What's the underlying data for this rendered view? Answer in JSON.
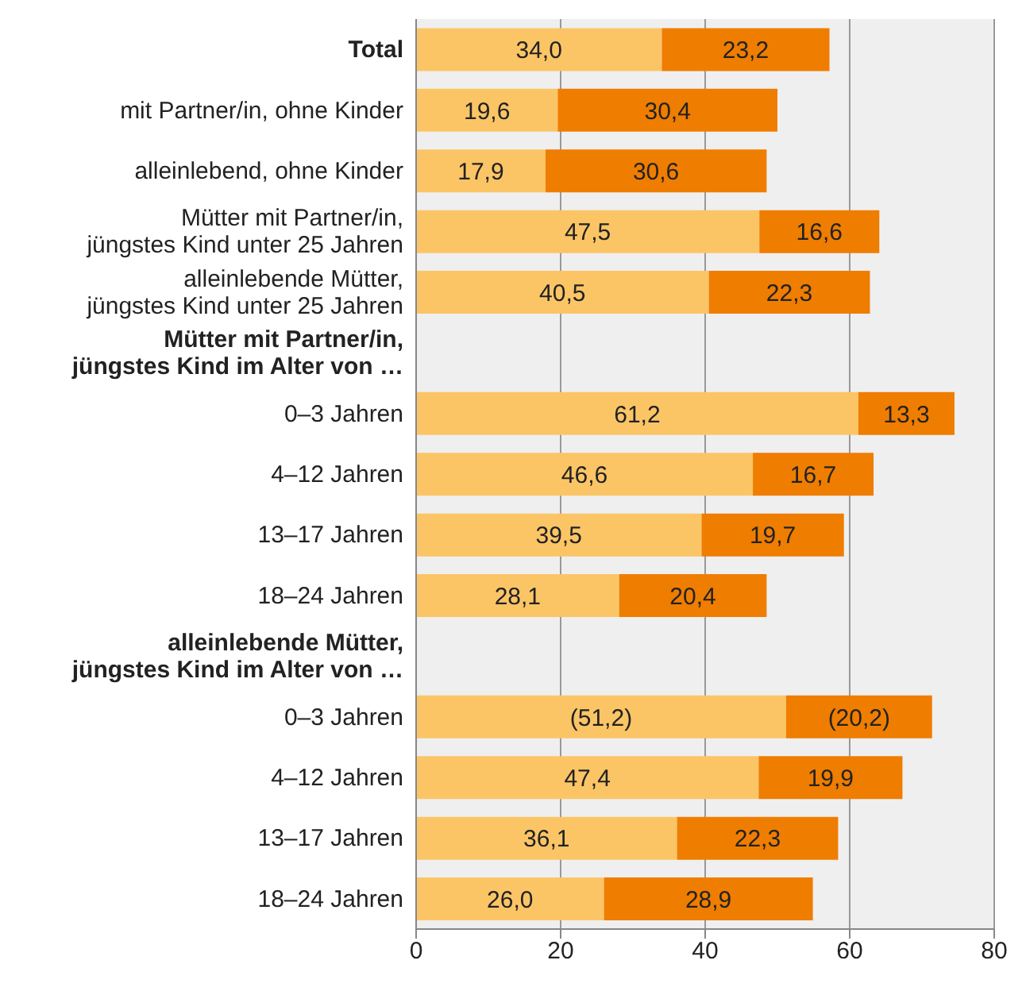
{
  "chart_data": {
    "type": "bar",
    "orientation": "horizontal",
    "stacked": true,
    "categories": [
      "Total",
      "mit Partner/in, ohne Kinder",
      "alleinlebend, ohne Kinder",
      "Mütter mit Partner/in,\njüngstes Kind unter 25 Jahren",
      "alleinlebende Mütter,\njüngstes Kind unter 25 Jahren",
      "Mütter mit Partner/in,\njüngstes Kind im Alter von …",
      "0–3 Jahren",
      "4–12 Jahren",
      "13–17 Jahren",
      "18–24 Jahren",
      "alleinlebende Mütter,\njüngstes Kind im Alter von …",
      "0–3 Jahren",
      "4–12 Jahren",
      "13–17 Jahren",
      "18–24 Jahren"
    ],
    "series": [
      {
        "color": "#fbc566",
        "values": [
          34.0,
          19.6,
          17.9,
          47.5,
          40.5,
          null,
          61.2,
          46.6,
          39.5,
          28.1,
          null,
          51.2,
          47.4,
          36.1,
          26.0
        ],
        "value_labels": [
          "34,0",
          "19,6",
          "17,9",
          "47,5",
          "40,5",
          null,
          "61,2",
          "46,6",
          "39,5",
          "28,1",
          null,
          "(51,2)",
          "47,4",
          "36,1",
          "26,0"
        ]
      },
      {
        "color": "#ef7d00",
        "values": [
          23.2,
          30.4,
          30.6,
          16.6,
          22.3,
          null,
          13.3,
          16.7,
          19.7,
          20.4,
          null,
          20.2,
          19.9,
          22.3,
          28.9
        ],
        "value_labels": [
          "23,2",
          "30,4",
          "30,6",
          "16,6",
          "22,3",
          null,
          "13,3",
          "16,7",
          "19,7",
          "20,4",
          null,
          "(20,2)",
          "19,9",
          "22,3",
          "28,9"
        ]
      }
    ],
    "xlim": [
      0,
      80
    ],
    "xticks": [
      0,
      20,
      40,
      60,
      80
    ],
    "grid": "x"
  }
}
